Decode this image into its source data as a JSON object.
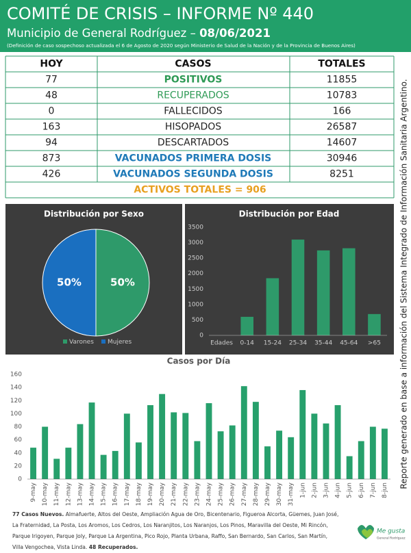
{
  "header": {
    "title": "COMITÉ DE CRISIS – INFORME Nº 440",
    "subtitle": "Municipio de General Rodríguez – ",
    "date": "08/06/2021",
    "note": "(Definición de caso sospechoso actualizada el 6 de Agosto de 2020 según Ministerio de Salud de la Nación y de la Provincia de Buenos Aires)"
  },
  "table": {
    "headers": [
      "HOY",
      "CASOS",
      "TOTALES"
    ],
    "rows": [
      {
        "hoy": 77,
        "caso": "POSITIVOS",
        "total": 11855,
        "color": "#2e9a55",
        "bold": true
      },
      {
        "hoy": 48,
        "caso": "RECUPERADOS",
        "total": 10783,
        "color": "#2e9a55",
        "bold": false
      },
      {
        "hoy": 0,
        "caso": "FALLECIDOS",
        "total": 166,
        "color": "#222222",
        "bold": false
      },
      {
        "hoy": 163,
        "caso": "HISOPADOS",
        "total": 26587,
        "color": "#222222",
        "bold": false
      },
      {
        "hoy": 94,
        "caso": "DESCARTADOS",
        "total": 14607,
        "color": "#222222",
        "bold": false
      },
      {
        "hoy": 873,
        "caso": "VACUNADOS PRIMERA DOSIS",
        "total": 30946,
        "color": "#1f7ab8",
        "bold": true
      },
      {
        "hoy": 426,
        "caso": "VACUNADOS SEGUNDA DOSIS",
        "total": 8251,
        "color": "#1f7ab8",
        "bold": true
      }
    ],
    "footer": "ACTIVOS TOTALES = 906"
  },
  "side_note": "Reporte generado en base a información del Sistema Integrado de Información Sanitaria Argentino.",
  "chart_data": [
    {
      "type": "pie",
      "title": "Distribución por Sexo",
      "categories": [
        "Varones",
        "Mujeres"
      ],
      "values": [
        50,
        50
      ],
      "value_labels": [
        "50%",
        "50%"
      ],
      "colors": [
        "#2e9a6a",
        "#1a6fc0"
      ],
      "legend": "bottom"
    },
    {
      "type": "bar",
      "title": "Distribución por Edad",
      "xlabel": "Edades",
      "categories": [
        "0-14",
        "15-24",
        "25-34",
        "35-44",
        "45-64",
        ">65"
      ],
      "values": [
        600,
        1850,
        3100,
        2750,
        2820,
        690
      ],
      "color": "#2e9a6a",
      "ylim": [
        0,
        3500
      ],
      "yticks": [
        0,
        500,
        1000,
        1500,
        2000,
        2500,
        3000,
        3500
      ],
      "grid": false
    },
    {
      "type": "bar",
      "title": "Casos por Día",
      "categories": [
        "9-may",
        "10-may",
        "11-may",
        "12-may",
        "13-may",
        "14-may",
        "15-may",
        "16-may",
        "17-may",
        "18-may",
        "19-may",
        "20-may",
        "21-may",
        "22-may",
        "23-may",
        "24-may",
        "25-may",
        "26-may",
        "27-may",
        "28-may",
        "29-may",
        "30-may",
        "31-may",
        "1-jun",
        "2-jun",
        "3-jun",
        "4-jun",
        "5-jun",
        "6-jun",
        "7-jun",
        "8-jun"
      ],
      "values": [
        48,
        80,
        31,
        48,
        84,
        117,
        37,
        43,
        100,
        56,
        113,
        130,
        102,
        101,
        58,
        116,
        73,
        82,
        142,
        118,
        50,
        74,
        64,
        136,
        100,
        85,
        113,
        35,
        58,
        80,
        77
      ],
      "color": "#27a06c",
      "ylim": [
        0,
        160
      ],
      "yticks": [
        0,
        20,
        40,
        60,
        80,
        100,
        120,
        140,
        160
      ],
      "grid": false
    }
  ],
  "footer": {
    "new_cases": "77 Casos Nuevos.",
    "localities": "Almafuerte, Altos del Oeste, Ampliación Agua de Oro, Bicentenario, Figueroa Alcorta, Güemes, Juan José, La Fraternidad, La Posta, Los Aromos, Los Cedros, Los Naranjitos, Los Naranjos, Los Pinos, Maravilla del Oeste, Mi Rincón, Parque Irigoyen, Parque Joly, Parque La Argentina, Pico Rojo, Planta Urbana, Raffo, San Bernardo, San Carlos, San Martín, Villa Vengochea, Vista Linda.",
    "recovered": "48 Recuperados."
  },
  "logo": {
    "name": "Me gusta",
    "tagline": "General Rodríguez"
  }
}
